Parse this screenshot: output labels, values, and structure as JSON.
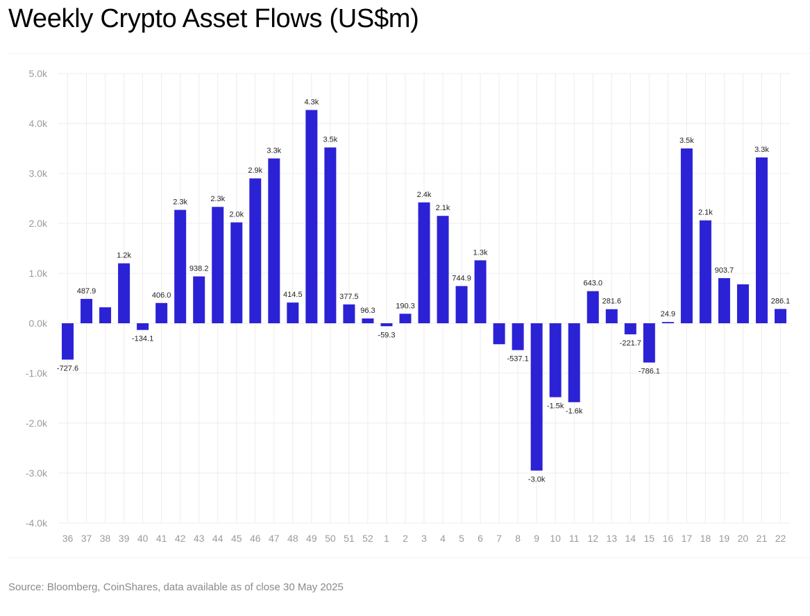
{
  "title": "Weekly Crypto Asset Flows (US$m)",
  "source": "Source: Bloomberg, CoinShares, data available as of close 30 May 2025",
  "colors": {
    "bar": "#2B22D6",
    "grid": "#ececec",
    "tick": "#9a9a9a"
  },
  "chart_data": {
    "type": "bar",
    "title": "Weekly Crypto Asset Flows (US$m)",
    "xlabel": "",
    "ylabel": "",
    "ylim": [
      -4000,
      5000
    ],
    "yticks": [
      5000,
      4000,
      3000,
      2000,
      1000,
      0,
      -1000,
      -2000,
      -3000,
      -4000
    ],
    "ytick_labels": [
      "5.0k",
      "4.0k",
      "3.0k",
      "2.0k",
      "1.0k",
      "0.0k",
      "-1.0k",
      "-2.0k",
      "-3.0k",
      "-4.0k"
    ],
    "grid": true,
    "categories": [
      "36",
      "37",
      "38",
      "39",
      "40",
      "41",
      "42",
      "43",
      "44",
      "45",
      "46",
      "47",
      "48",
      "49",
      "50",
      "51",
      "52",
      "1",
      "2",
      "3",
      "4",
      "5",
      "6",
      "7",
      "8",
      "9",
      "10",
      "11",
      "12",
      "13",
      "14",
      "15",
      "16",
      "17",
      "18",
      "19",
      "20",
      "21",
      "22"
    ],
    "values": [
      -727.6,
      487.9,
      320,
      1200,
      -134.1,
      406.0,
      2270,
      938.2,
      2330,
      2020,
      2900,
      3300,
      414.5,
      4270,
      3520,
      377.5,
      96.3,
      -59.3,
      190.3,
      2420,
      2150,
      744.9,
      1260,
      -420,
      -537.1,
      -2950,
      -1480,
      -1580,
      643.0,
      281.6,
      -221.7,
      -786.1,
      24.9,
      3500,
      2060,
      903.7,
      780,
      3320,
      286.1
    ],
    "data_labels": [
      "-727.6",
      "487.9",
      "",
      "1.2k",
      "-134.1",
      "406.0",
      "2.3k",
      "938.2",
      "2.3k",
      "2.0k",
      "2.9k",
      "3.3k",
      "414.5",
      "4.3k",
      "3.5k",
      "377.5",
      "96.3",
      "-59.3",
      "190.3",
      "2.4k",
      "2.1k",
      "744.9",
      "1.3k",
      "",
      "-537.1",
      "-3.0k",
      "-1.5k",
      "-1.6k",
      "643.0",
      "281.6",
      "-221.7",
      "-786.1",
      "24.9",
      "3.5k",
      "2.1k",
      "903.7",
      "",
      "3.3k",
      "286.1"
    ]
  }
}
